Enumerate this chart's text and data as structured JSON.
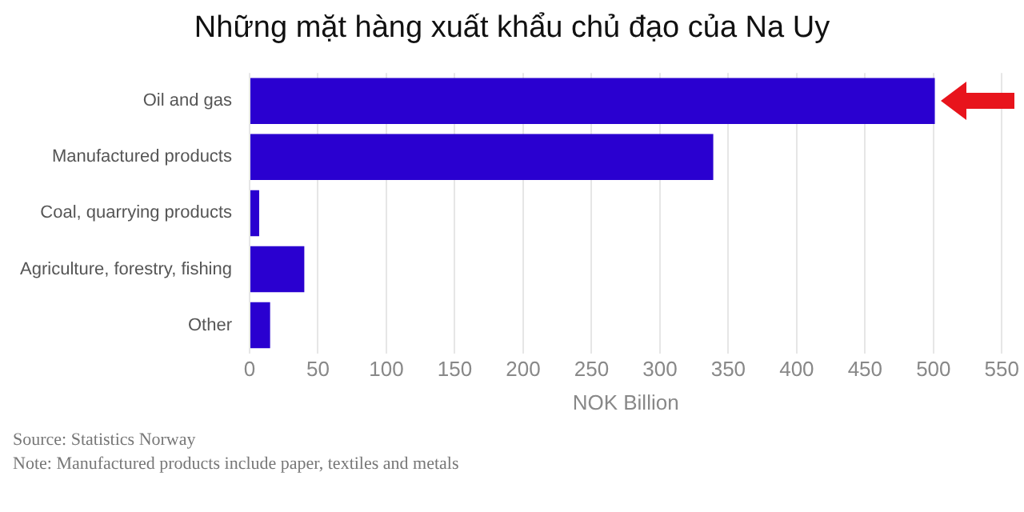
{
  "chart_data": {
    "type": "bar",
    "orientation": "horizontal",
    "title": "Những mặt hàng xuất khẩu chủ đạo của Na Uy",
    "xlabel": "NOK Billion",
    "categories": [
      "Oil and gas",
      "Manufactured products",
      "Coal, quarrying products",
      "Agriculture, forestry, fishing",
      "Other"
    ],
    "values": [
      501,
      339,
      7,
      40,
      15
    ],
    "color": "#2a00d0",
    "xlim": [
      0,
      550
    ],
    "xticks": [
      0,
      50,
      100,
      150,
      200,
      250,
      300,
      350,
      400,
      450,
      500,
      550
    ],
    "grid": "x",
    "annotations": [
      "Source: Statistics Norway",
      "Note: Manufactured products include paper, textiles and metals"
    ]
  }
}
